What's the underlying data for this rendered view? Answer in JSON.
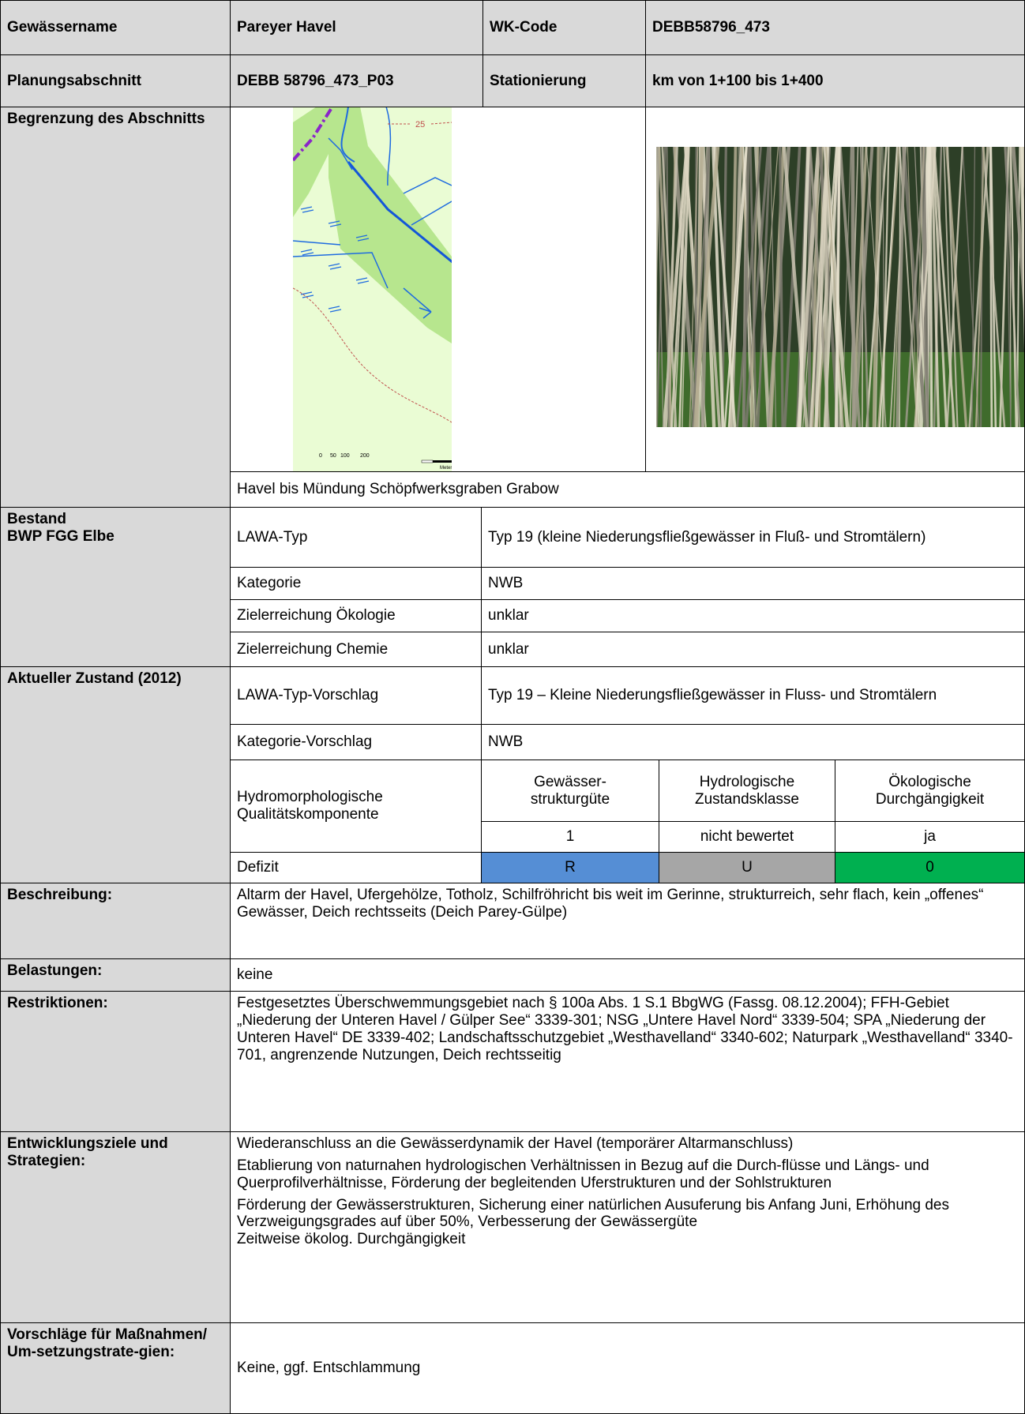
{
  "header": {
    "rows": [
      [
        "Gewässername",
        "Pareyer Havel",
        "WK-Code",
        "DEBB58796_473"
      ],
      [
        "Planungsabschnitt",
        "DEBB 58796_473_P03",
        "Stationierung",
        "km von 1+100 bis 1+400"
      ]
    ]
  },
  "begrenzung": {
    "label": "Begrenzung des Abschnitts",
    "map": {
      "contour_label": "25",
      "scale_labels": [
        "0",
        "50",
        "100",
        "200"
      ],
      "scale_unit": "Meter"
    },
    "caption": "Havel bis Mündung Schöpfwerksgraben Grabow"
  },
  "bestand": {
    "label": "Bestand\nBWP FGG Elbe",
    "rows": [
      [
        "LAWA-Typ",
        "Typ 19 (kleine Niederungsfließgewässer in Fluß- und Stromtälern)"
      ],
      [
        "Kategorie",
        "NWB"
      ],
      [
        "Zielerreichung Ökologie",
        "unklar"
      ],
      [
        "Zielerreichung Chemie",
        "unklar"
      ]
    ]
  },
  "zustand": {
    "label": "Aktueller Zustand (2012)",
    "rows": [
      [
        "LAWA-Typ-Vorschlag",
        "Typ 19 – Kleine Niederungsfließgewässer in Fluss- und Stromtälern"
      ],
      [
        "Kategorie-Vorschlag",
        "NWB"
      ]
    ],
    "hydro": {
      "label": "Hydromorphologische Qualitätskomponente",
      "headers": [
        "Gewässer-\nstrukturgüte",
        "Hydrologische Zustandsklasse",
        "Ökologische Durchgängigkeit"
      ],
      "values": [
        "1",
        "nicht bewertet",
        "ja"
      ]
    },
    "defizit": {
      "label": "Defizit",
      "values": [
        "R",
        "U",
        "0"
      ],
      "colors": [
        "#558ed5",
        "#a6a6a6",
        "#00b050"
      ]
    }
  },
  "sections": [
    {
      "label": "Beschreibung:",
      "paragraphs": [
        "Altarm der Havel, Ufergehölze, Totholz, Schilfröhricht bis weit im Gerinne, strukturreich, sehr flach, kein „offenes“ Gewässer, Deich rechtsseits (Deich Parey-Gülpe)"
      ]
    },
    {
      "label": "Belastungen:",
      "paragraphs": [
        "keine"
      ]
    },
    {
      "label": "Restriktionen:",
      "paragraphs": [
        "Festgesetztes Überschwemmungsgebiet nach § 100a Abs. 1 S.1 BbgWG (Fassg. 08.12.2004); FFH-Gebiet „Niederung der Unteren Havel / Gülper See“ 3339-301; NSG „Untere Havel Nord“ 3339-504; SPA „Niederung der Unteren Havel“ DE 3339-402; Landschaftsschutzgebiet „Westhavelland“ 3340-602; Naturpark „Westhavelland“ 3340-701, angrenzende Nutzungen,  Deich rechtsseitig"
      ]
    },
    {
      "label": "Entwicklungsziele und Strategien:",
      "paragraphs": [
        "Wiederanschluss an die Gewässerdynamik der Havel (temporärer Altarmanschluss)",
        "Etablierung von naturnahen hydrologischen Verhältnissen in Bezug auf die Durch-flüsse und Längs- und Querprofilverhältnisse, Förderung der begleitenden Uferstrukturen und der Sohlstrukturen",
        "Förderung der Gewässerstrukturen, Sicherung einer natürlichen Ausuferung bis Anfang Juni, Erhöhung des Verzweigungsgrades auf über 50%, Verbesserung der Gewässergüte",
        "Zeitweise ökolog. Durchgängigkeit"
      ]
    },
    {
      "label": "Vorschläge für Maßnahmen/ Um-setzungstrate-gien:",
      "paragraphs": [
        "Keine, ggf. Entschlammung"
      ]
    }
  ]
}
